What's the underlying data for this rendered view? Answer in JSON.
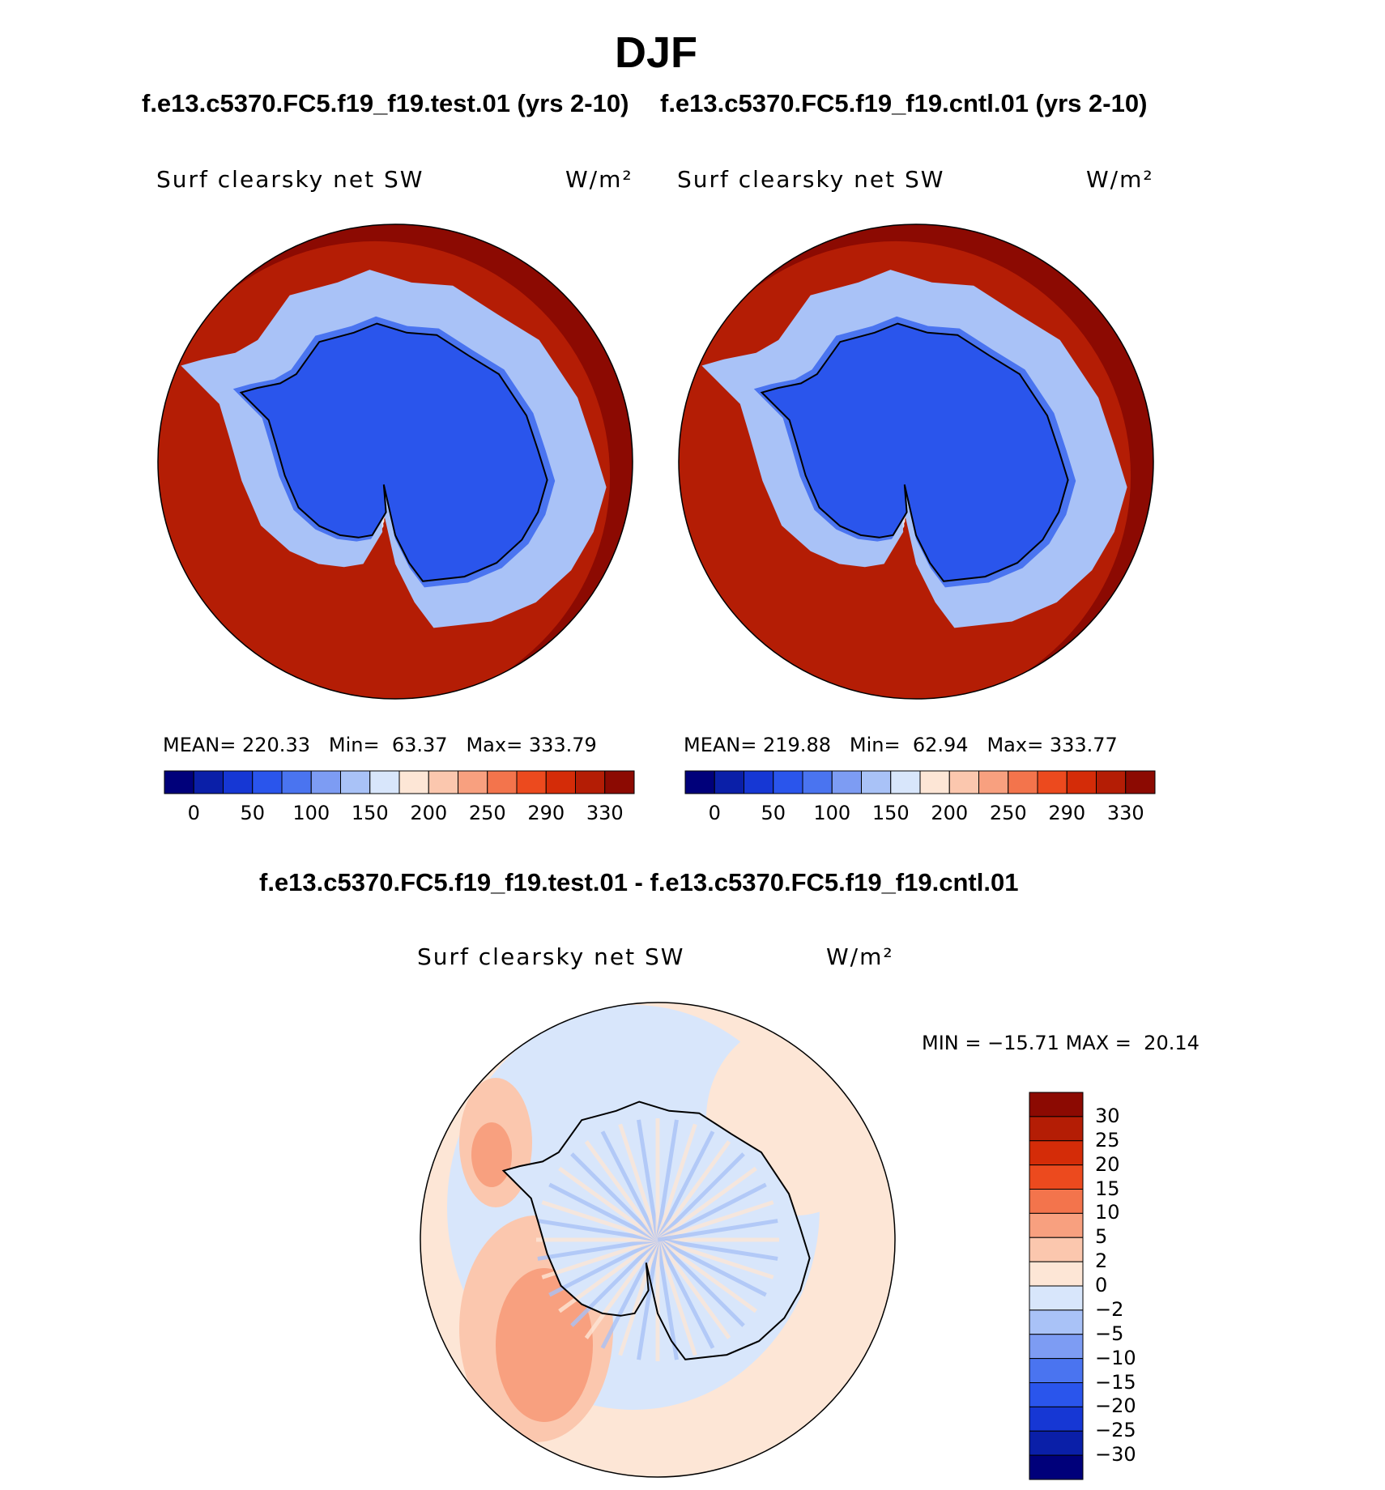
{
  "title": "DJF",
  "subtitles": {
    "test": "f.e13.c5370.FC5.f19_f19.test.01 (yrs 2-10)",
    "cntl": "f.e13.c5370.FC5.f19_f19.cntl.01 (yrs 2-10)",
    "diff": "f.e13.c5370.FC5.f19_f19.test.01 - f.e13.c5370.FC5.f19_f19.cntl.01"
  },
  "chart_data": [
    {
      "type": "heatmap",
      "projection": "south-polar-stereographic",
      "variable": "Surf clearsky net SW",
      "units": "W/m²",
      "case": "f.e13.c5370.FC5.f19_f19.test.01 (yrs 2-10)",
      "stats": {
        "mean_label": "MEAN=",
        "mean": "220.33",
        "min_label": "Min=",
        "min": "63.37",
        "max_label": "Max=",
        "max": "333.79"
      },
      "colorbar": {
        "tick_labels": [
          "0",
          "50",
          "100",
          "150",
          "200",
          "250",
          "290",
          "330"
        ]
      }
    },
    {
      "type": "heatmap",
      "projection": "south-polar-stereographic",
      "variable": "Surf clearsky net SW",
      "units": "W/m²",
      "case": "f.e13.c5370.FC5.f19_f19.cntl.01 (yrs 2-10)",
      "stats": {
        "mean_label": "MEAN=",
        "mean": "219.88",
        "min_label": "Min=",
        "min": "62.94",
        "max_label": "Max=",
        "max": "333.77"
      },
      "colorbar": {
        "tick_labels": [
          "0",
          "50",
          "100",
          "150",
          "200",
          "250",
          "290",
          "330"
        ]
      }
    },
    {
      "type": "heatmap",
      "projection": "south-polar-stereographic",
      "variable": "Surf clearsky net SW",
      "units": "W/m²",
      "case": "f.e13.c5370.FC5.f19_f19.test.01 - f.e13.c5370.FC5.f19_f19.cntl.01",
      "stats": {
        "min_label": "MIN =",
        "min": "−15.71",
        "max_label": "MAX =",
        "max": "20.14"
      },
      "colorbar": {
        "tick_labels": [
          "30",
          "25",
          "20",
          "15",
          "10",
          "5",
          "2",
          "0",
          "−2",
          "−5",
          "−10",
          "−15",
          "−20",
          "−25",
          "−30"
        ]
      }
    }
  ],
  "colors": {
    "seq_scale": [
      "#00007a",
      "#0a1fa8",
      "#1637d4",
      "#2a55ec",
      "#4a74f0",
      "#7d9cf3",
      "#a9c2f7",
      "#d8e6fb",
      "#fde6d6",
      "#fbc7ae",
      "#f8a07f",
      "#f3744c",
      "#ec4a1e",
      "#d42c08",
      "#b41d05",
      "#8c0a02"
    ],
    "diff_scale": [
      "#8c0a02",
      "#b41d05",
      "#d42c08",
      "#ec4a1e",
      "#f3744c",
      "#f8a07f",
      "#fbc7ae",
      "#fde6d6",
      "#d8e6fb",
      "#a9c2f7",
      "#7d9cf3",
      "#4a74f0",
      "#2a55ec",
      "#1637d4",
      "#0a1fa8",
      "#00007a"
    ]
  }
}
